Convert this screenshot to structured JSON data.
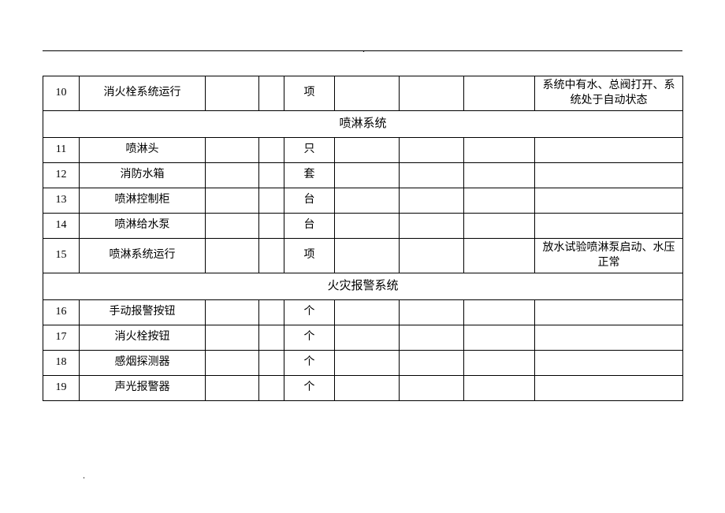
{
  "header_dot": ".",
  "footer_dot": ".",
  "section2": {
    "title": "喷淋系统"
  },
  "section3": {
    "title": "火灾报警系统"
  },
  "rows": {
    "r10": {
      "no": "10",
      "name": "消火栓系统运行",
      "unit": "项",
      "remark": "系统中有水、总阀打开、系统处于自动状态"
    },
    "r11": {
      "no": "11",
      "name": "喷淋头",
      "unit": "只",
      "remark": ""
    },
    "r12": {
      "no": "12",
      "name": "消防水箱",
      "unit": "套",
      "remark": ""
    },
    "r13": {
      "no": "13",
      "name": "喷淋控制柜",
      "unit": "台",
      "remark": ""
    },
    "r14": {
      "no": "14",
      "name": "喷淋给水泵",
      "unit": "台",
      "remark": ""
    },
    "r15": {
      "no": "15",
      "name": "喷淋系统运行",
      "unit": "项",
      "remark": "放水试验喷淋泵启动、水压正常"
    },
    "r16": {
      "no": "16",
      "name": "手动报警按钮",
      "unit": "个",
      "remark": ""
    },
    "r17": {
      "no": "17",
      "name": "消火栓按钮",
      "unit": "个",
      "remark": ""
    },
    "r18": {
      "no": "18",
      "name": "感烟探测器",
      "unit": "个",
      "remark": ""
    },
    "r19": {
      "no": "19",
      "name": "声光报警器",
      "unit": "个",
      "remark": ""
    }
  }
}
